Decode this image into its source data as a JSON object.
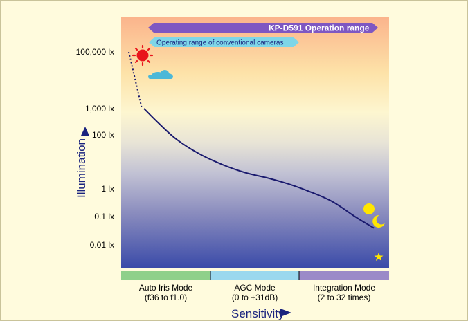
{
  "chart_data": {
    "type": "line",
    "xlabel": "Sensitivity",
    "ylabel": "Illumination",
    "y_tick_labels": [
      "100,000 lx",
      "1,000 lx",
      "100 lx",
      "1 lx",
      "0.1 lx",
      "0.01 lx"
    ],
    "y_tick_values": [
      100000,
      1000,
      100,
      1,
      0.1,
      0.01
    ],
    "y_scale": "log",
    "range_banners": [
      {
        "label": "KP-D591 Operation range",
        "color": "#7e57c2"
      },
      {
        "label": "Operating range of conventional cameras",
        "color": "#7ed6e8"
      }
    ],
    "modes": [
      {
        "name": "Auto Iris Mode",
        "detail": "(f36 to f1.0)",
        "color": "#8fd08a"
      },
      {
        "name": "AGC Mode",
        "detail": "(0 to +31dB)",
        "color": "#9ad8ee"
      },
      {
        "name": "Integration Mode",
        "detail": "(2 to 32 times)",
        "color": "#9b8ac8"
      }
    ],
    "curve": {
      "color": "#1a1a6e",
      "dotted_segment_illumination": [
        100000,
        1000
      ],
      "solid_points": [
        {
          "sensitivity": 0.0,
          "illumination": 1000
        },
        {
          "sensitivity": 0.06,
          "illumination": 300
        },
        {
          "sensitivity": 0.14,
          "illumination": 70
        },
        {
          "sensitivity": 0.24,
          "illumination": 20
        },
        {
          "sensitivity": 0.34,
          "illumination": 8
        },
        {
          "sensitivity": 0.44,
          "illumination": 4
        },
        {
          "sensitivity": 0.54,
          "illumination": 2.5
        },
        {
          "sensitivity": 0.63,
          "illumination": 1.5
        },
        {
          "sensitivity": 0.72,
          "illumination": 0.8
        },
        {
          "sensitivity": 0.82,
          "illumination": 0.35
        },
        {
          "sensitivity": 0.92,
          "illumination": 0.1
        },
        {
          "sensitivity": 1.0,
          "illumination": 0.04
        }
      ]
    },
    "icons": [
      "sun-icon",
      "cloud-icon",
      "moon-icon",
      "crescent-moon-icon",
      "star-icon"
    ],
    "grid": false,
    "legend": "none"
  }
}
